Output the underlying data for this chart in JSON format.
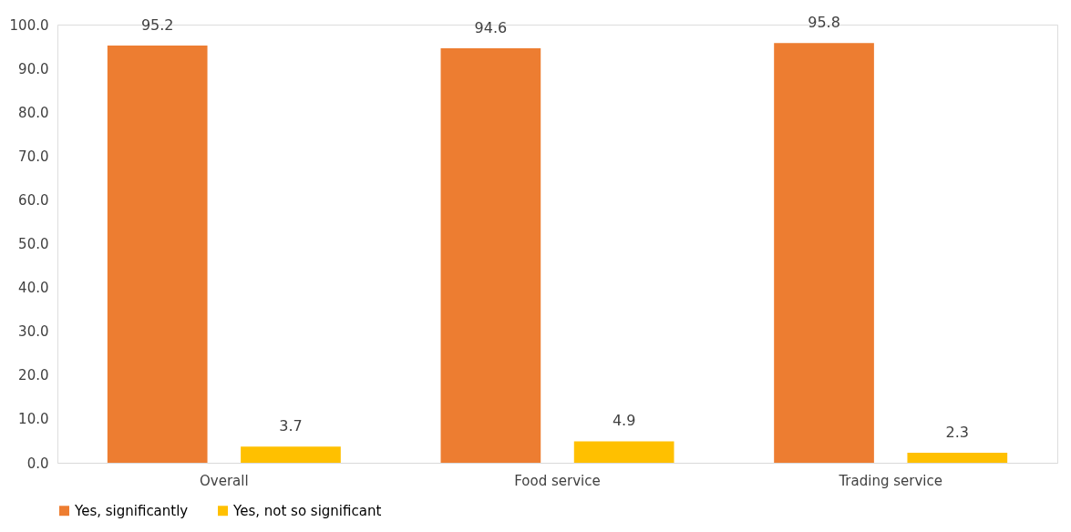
{
  "chart_data": {
    "type": "bar",
    "categories": [
      "Overall",
      "Food service",
      "Trading service"
    ],
    "series": [
      {
        "name": "Yes, significantly",
        "color": "#ed7d31",
        "values": [
          95.2,
          94.6,
          95.8
        ]
      },
      {
        "name": "Yes, not so significant",
        "color": "#ffc000",
        "values": [
          3.7,
          4.9,
          2.3
        ]
      }
    ],
    "ylim": [
      0,
      100
    ],
    "yticks": [
      {
        "value": 0,
        "label": "0.0"
      },
      {
        "value": 10,
        "label": "10.0"
      },
      {
        "value": 20,
        "label": "20.0"
      },
      {
        "value": 30,
        "label": "30.0"
      },
      {
        "value": 40,
        "label": "40.0"
      },
      {
        "value": 50,
        "label": "50.0"
      },
      {
        "value": 60,
        "label": "60.0"
      },
      {
        "value": 70,
        "label": "70.0"
      },
      {
        "value": 80,
        "label": "80.0"
      },
      {
        "value": 90,
        "label": "90.0"
      },
      {
        "value": 100,
        "label": "100.0"
      }
    ],
    "data_labels": true,
    "grid": false,
    "legend": "bottom"
  }
}
